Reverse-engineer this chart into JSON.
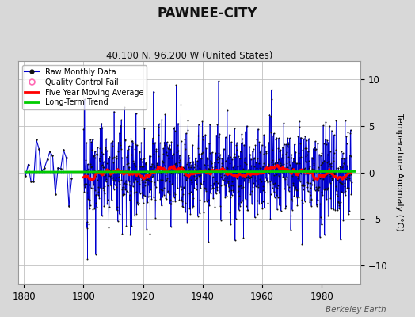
{
  "title": "PAWNEE-CITY",
  "subtitle": "40.100 N, 96.200 W (United States)",
  "ylabel": "Temperature Anomaly (°C)",
  "watermark": "Berkeley Earth",
  "xlim": [
    1878,
    1993
  ],
  "ylim": [
    -12,
    12
  ],
  "yticks": [
    -10,
    -5,
    0,
    5,
    10
  ],
  "xticks": [
    1880,
    1900,
    1920,
    1940,
    1960,
    1980
  ],
  "bg_color": "#d8d8d8",
  "plot_bg_color": "#ffffff",
  "grid_color": "#c0c0c0",
  "data_start_year": 1880.5,
  "sparse_end_year": 1896,
  "dense_start_year": 1900,
  "data_end_year": 1990,
  "raw_color": "#0000cc",
  "stem_color": "#8888ff",
  "dot_color": "#111111",
  "ma_color": "#ff0000",
  "trend_color": "#00cc00",
  "qc_color": "#ff69b4",
  "seed": 12345,
  "n_months_sparse": 18,
  "n_months_dense": 1080,
  "amplitude": 2.8,
  "spike_prob": 0.06,
  "spike_scale": 3.0,
  "ma_window": 60,
  "trend_intercept": 0.05,
  "trend_slope": 0.0005
}
